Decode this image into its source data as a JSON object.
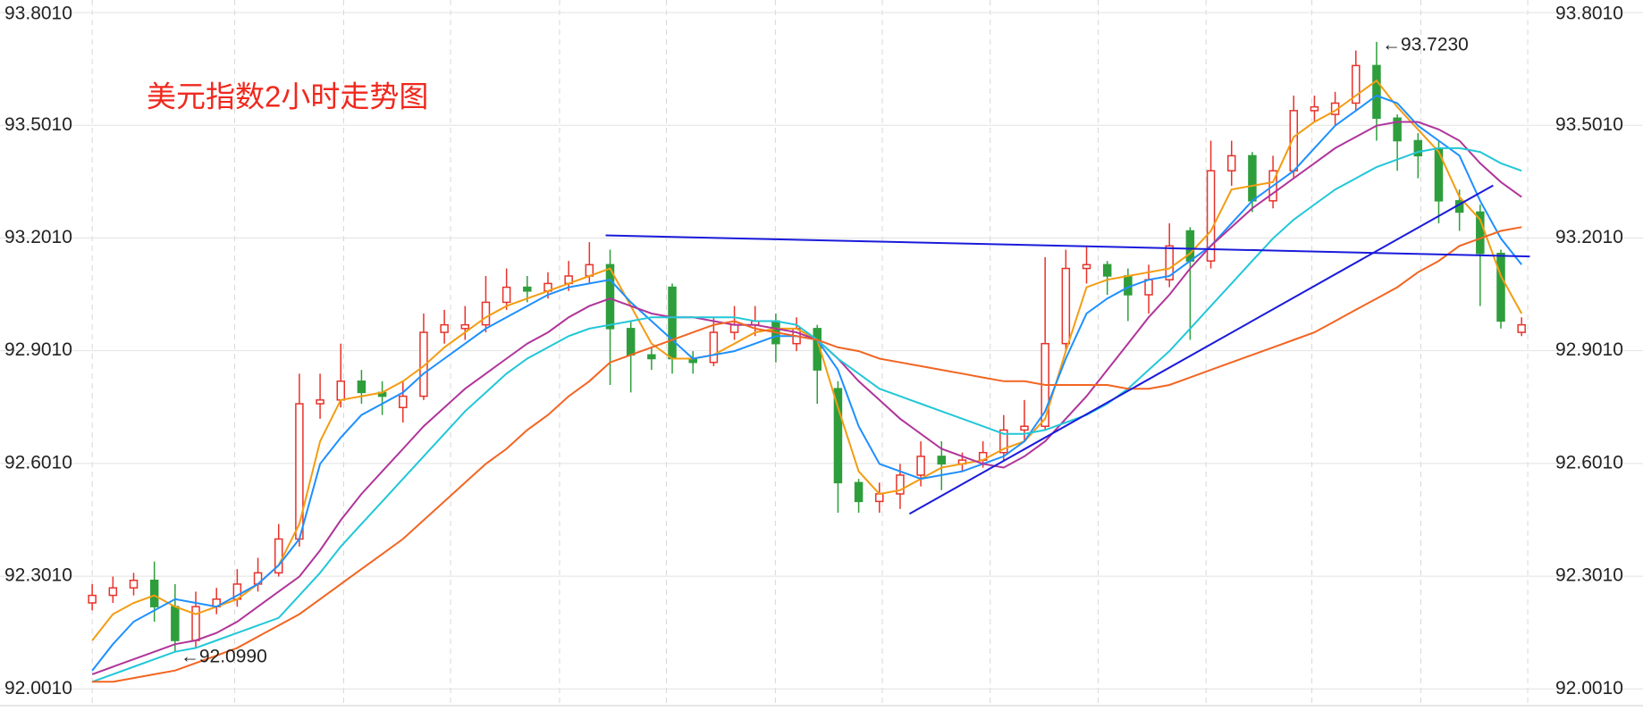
{
  "chart_data": {
    "type": "candlestick",
    "title": "美元指数2小时走势图",
    "up_color": "#e8322a",
    "down_color": "#2e9e3c",
    "ylim": [
      92.001,
      93.801
    ],
    "yticks": [
      {
        "value": 92.001,
        "label": "92.0010"
      },
      {
        "value": 92.301,
        "label": "92.3010"
      },
      {
        "value": 92.601,
        "label": "92.6010"
      },
      {
        "value": 92.901,
        "label": "92.9010"
      },
      {
        "value": 93.201,
        "label": "93.2010"
      },
      {
        "value": 93.501,
        "label": "93.5010"
      },
      {
        "value": 93.801,
        "label": "93.8010"
      }
    ],
    "grid": true,
    "open": [
      92.23,
      92.25,
      92.27,
      92.29,
      92.22,
      92.13,
      92.22,
      92.24,
      92.28,
      92.31,
      92.4,
      92.76,
      92.77,
      92.82,
      92.79,
      92.75,
      92.78,
      92.95,
      92.96,
      92.97,
      93.03,
      93.07,
      93.06,
      93.08,
      93.1,
      93.13,
      92.96,
      92.89,
      93.07,
      92.88,
      92.87,
      92.95,
      92.97,
      92.98,
      92.92,
      92.96,
      92.8,
      92.55,
      92.5,
      92.52,
      92.57,
      92.62,
      92.6,
      92.61,
      92.63,
      92.69,
      92.7,
      92.92,
      93.12,
      93.13,
      93.1,
      93.05,
      93.09,
      93.22,
      93.14,
      93.38,
      93.42,
      93.3,
      93.38,
      93.54,
      93.53,
      93.56,
      93.66,
      93.52,
      93.46,
      93.44,
      93.3,
      93.27,
      93.16,
      92.95
    ],
    "high": [
      92.28,
      92.3,
      92.31,
      92.34,
      92.28,
      92.26,
      92.27,
      92.32,
      92.35,
      92.44,
      92.84,
      92.84,
      92.92,
      92.85,
      92.82,
      92.82,
      93.0,
      93.01,
      93.02,
      93.1,
      93.12,
      93.1,
      93.11,
      93.14,
      93.19,
      93.17,
      92.98,
      92.91,
      93.08,
      92.9,
      92.99,
      93.02,
      93.02,
      93.0,
      92.99,
      92.97,
      92.82,
      92.56,
      92.55,
      92.6,
      92.66,
      92.66,
      92.63,
      92.66,
      92.73,
      92.77,
      93.15,
      93.17,
      93.18,
      93.14,
      93.12,
      93.13,
      93.24,
      93.23,
      93.46,
      93.46,
      93.43,
      93.42,
      93.58,
      93.58,
      93.59,
      93.7,
      93.723,
      93.53,
      93.48,
      93.46,
      93.33,
      93.29,
      93.17,
      92.99
    ],
    "low": [
      92.21,
      92.23,
      92.25,
      92.18,
      92.099,
      92.11,
      92.2,
      92.22,
      92.26,
      92.3,
      92.38,
      92.72,
      92.75,
      92.76,
      92.73,
      92.71,
      92.77,
      92.92,
      92.93,
      92.95,
      93.01,
      93.03,
      93.04,
      93.06,
      93.08,
      92.81,
      92.79,
      92.85,
      92.84,
      92.84,
      92.86,
      92.93,
      92.94,
      92.87,
      92.9,
      92.76,
      92.47,
      92.47,
      92.47,
      92.48,
      92.54,
      92.53,
      92.58,
      92.59,
      92.61,
      92.66,
      92.69,
      92.9,
      93.08,
      93.05,
      92.98,
      93.0,
      93.07,
      92.93,
      93.12,
      93.34,
      93.27,
      93.28,
      93.36,
      93.51,
      93.5,
      93.54,
      93.46,
      93.38,
      93.36,
      93.24,
      93.22,
      93.02,
      92.96,
      92.94
    ],
    "close": [
      92.25,
      92.27,
      92.29,
      92.22,
      92.13,
      92.22,
      92.24,
      92.28,
      92.31,
      92.4,
      92.76,
      92.77,
      92.82,
      92.79,
      92.78,
      92.78,
      92.95,
      92.97,
      92.97,
      93.03,
      93.07,
      93.06,
      93.08,
      93.1,
      93.13,
      92.96,
      92.89,
      92.88,
      92.88,
      92.87,
      92.95,
      92.97,
      92.98,
      92.92,
      92.96,
      92.85,
      92.55,
      92.5,
      92.52,
      92.57,
      92.62,
      92.6,
      92.61,
      92.63,
      92.69,
      92.7,
      92.92,
      93.12,
      93.13,
      93.1,
      93.05,
      93.09,
      93.18,
      93.14,
      93.38,
      93.42,
      93.3,
      93.38,
      93.54,
      93.55,
      93.56,
      93.66,
      93.52,
      93.46,
      93.42,
      93.3,
      93.27,
      93.16,
      92.98,
      92.97
    ],
    "lines": [
      {
        "color": "#f39c12",
        "values": [
          92.13,
          92.2,
          92.23,
          92.25,
          92.22,
          92.2,
          92.22,
          92.24,
          92.28,
          92.33,
          92.44,
          92.66,
          92.77,
          92.78,
          92.79,
          92.82,
          92.86,
          92.91,
          92.95,
          92.99,
          93.02,
          93.04,
          93.06,
          93.08,
          93.1,
          93.12,
          93.02,
          92.92,
          92.88,
          92.88,
          92.89,
          92.92,
          92.95,
          92.96,
          92.96,
          92.93,
          92.75,
          92.58,
          92.52,
          92.53,
          92.56,
          92.59,
          92.6,
          92.61,
          92.64,
          92.66,
          92.72,
          92.9,
          93.07,
          93.09,
          93.1,
          93.11,
          93.12,
          93.16,
          93.22,
          93.33,
          93.34,
          93.35,
          93.47,
          93.51,
          93.54,
          93.58,
          93.62,
          93.55,
          93.49,
          93.43,
          93.31,
          93.25,
          93.1,
          93.0
        ]
      },
      {
        "color": "#1e90ff",
        "values": [
          92.05,
          92.12,
          92.18,
          92.21,
          92.24,
          92.23,
          92.22,
          92.25,
          92.28,
          92.33,
          92.4,
          92.6,
          92.67,
          92.73,
          92.76,
          92.79,
          92.84,
          92.88,
          92.92,
          92.96,
          92.99,
          93.02,
          93.05,
          93.07,
          93.08,
          93.09,
          93.03,
          92.98,
          92.93,
          92.88,
          92.89,
          92.9,
          92.92,
          92.94,
          92.94,
          92.93,
          92.85,
          92.7,
          92.6,
          92.58,
          92.56,
          92.57,
          92.58,
          92.6,
          92.62,
          92.66,
          92.74,
          92.88,
          93.0,
          93.04,
          93.07,
          93.09,
          93.1,
          93.14,
          93.18,
          93.24,
          93.3,
          93.34,
          93.38,
          93.44,
          93.5,
          93.54,
          93.58,
          93.56,
          93.5,
          93.46,
          93.42,
          93.3,
          93.2,
          93.13
        ]
      },
      {
        "color": "#b0359a",
        "values": [
          92.04,
          92.06,
          92.08,
          92.1,
          92.12,
          92.13,
          92.15,
          92.18,
          92.22,
          92.26,
          92.3,
          92.37,
          92.45,
          92.52,
          92.58,
          92.64,
          92.7,
          92.75,
          92.8,
          92.84,
          92.88,
          92.92,
          92.95,
          92.99,
          93.02,
          93.04,
          93.02,
          93.0,
          92.99,
          92.99,
          92.98,
          92.97,
          92.97,
          92.96,
          92.95,
          92.93,
          92.88,
          92.82,
          92.77,
          92.72,
          92.68,
          92.64,
          92.62,
          92.6,
          92.59,
          92.62,
          92.66,
          92.72,
          92.78,
          92.85,
          92.92,
          92.99,
          93.05,
          93.12,
          93.18,
          93.23,
          93.28,
          93.32,
          93.36,
          93.4,
          93.44,
          93.47,
          93.5,
          93.51,
          93.51,
          93.49,
          93.46,
          93.4,
          93.35,
          93.31
        ]
      },
      {
        "color": "#22c7d8",
        "values": [
          92.02,
          92.04,
          92.06,
          92.08,
          92.1,
          92.11,
          92.13,
          92.15,
          92.17,
          92.19,
          92.25,
          92.31,
          92.38,
          92.44,
          92.5,
          92.56,
          92.62,
          92.68,
          92.74,
          92.79,
          92.84,
          92.88,
          92.91,
          92.94,
          92.96,
          92.97,
          92.98,
          92.99,
          92.99,
          92.99,
          92.99,
          92.99,
          92.98,
          92.98,
          92.97,
          92.93,
          92.88,
          92.84,
          92.8,
          92.78,
          92.76,
          92.74,
          92.72,
          92.7,
          92.68,
          92.68,
          92.69,
          92.71,
          92.73,
          92.76,
          92.8,
          92.85,
          92.9,
          92.96,
          93.02,
          93.08,
          93.14,
          93.2,
          93.25,
          93.29,
          93.33,
          93.36,
          93.39,
          93.41,
          93.43,
          93.44,
          93.44,
          93.43,
          93.4,
          93.38
        ]
      },
      {
        "color": "#f26522",
        "values": [
          92.02,
          92.02,
          92.03,
          92.04,
          92.05,
          92.07,
          92.09,
          92.11,
          92.14,
          92.17,
          92.2,
          92.24,
          92.28,
          92.32,
          92.36,
          92.4,
          92.45,
          92.5,
          92.55,
          92.6,
          92.64,
          92.69,
          92.73,
          92.78,
          92.82,
          92.87,
          92.89,
          92.91,
          92.93,
          92.95,
          92.97,
          92.98,
          92.96,
          92.95,
          92.94,
          92.93,
          92.91,
          92.9,
          92.88,
          92.87,
          92.86,
          92.85,
          92.84,
          92.83,
          92.82,
          92.82,
          92.81,
          92.81,
          92.81,
          92.81,
          92.8,
          92.8,
          92.81,
          92.83,
          92.85,
          92.87,
          92.89,
          92.91,
          92.93,
          92.95,
          92.98,
          93.01,
          93.04,
          93.07,
          93.11,
          93.14,
          93.18,
          93.2,
          93.22,
          93.23
        ]
      }
    ],
    "trendlines": [
      {
        "color": "#1a1adb",
        "values": [
          93.208,
          93.152
        ]
      },
      {
        "color": "#1a1adb",
        "values": [
          92.467,
          93.341
        ]
      }
    ],
    "annotations": [
      {
        "text": "←93.7230"
      },
      {
        "text": "←92.0990"
      }
    ]
  }
}
